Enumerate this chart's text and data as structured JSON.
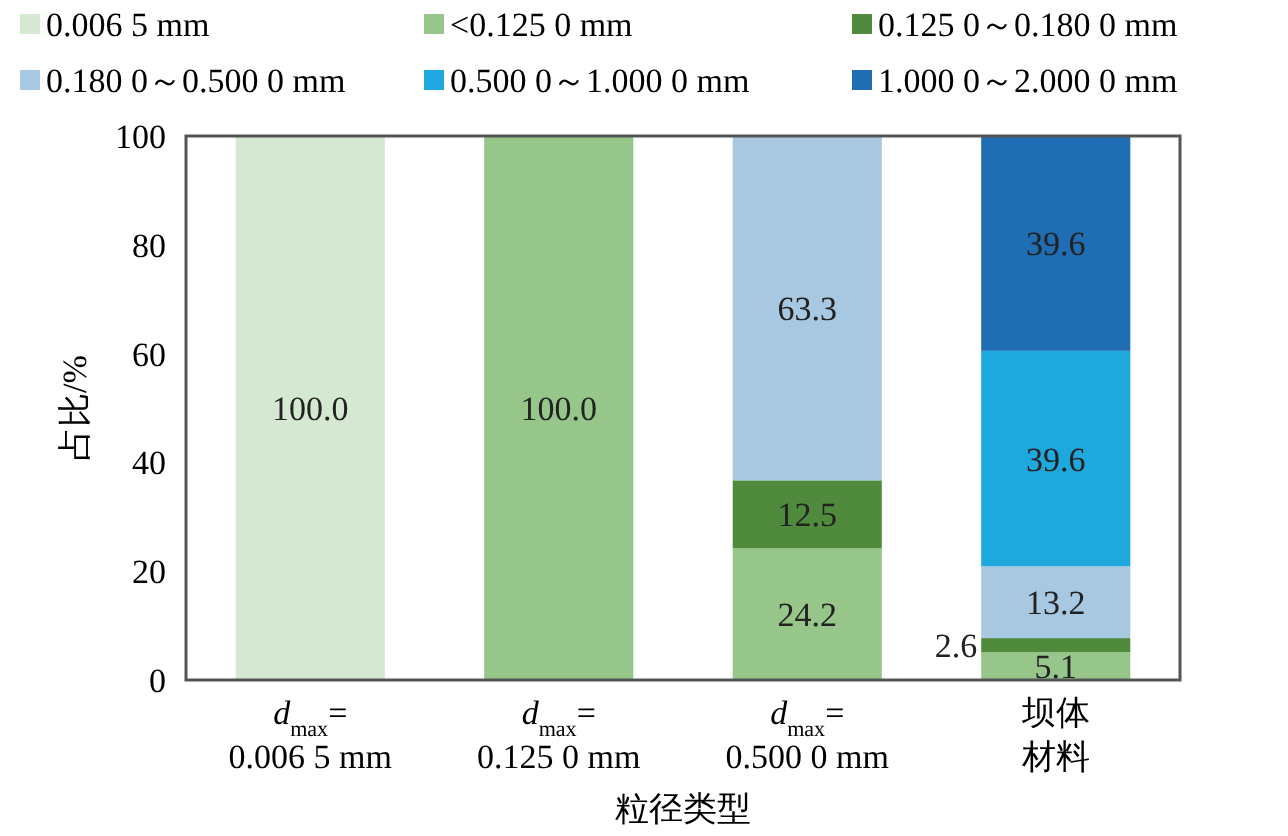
{
  "chart_data": {
    "type": "bar",
    "stacked": true,
    "xlabel": "粒径类型",
    "ylabel": "占比/%",
    "categories": [
      "d$_{max}$=\n0.006 5 mm",
      "d$_{max}$=\n0.125 0 mm",
      "d$_{max}$=\n0.500 0 mm",
      "坝体材料"
    ],
    "ylim": [
      0,
      100
    ],
    "yticks": [
      0,
      20,
      40,
      60,
      80,
      100
    ],
    "grid": false,
    "legend": "top",
    "series": [
      {
        "name": "0.006 5 mm",
        "color": "#d5e8d1",
        "values": [
          100,
          null,
          null,
          null
        ],
        "value_labels": [
          "100.0",
          null,
          null,
          null
        ]
      },
      {
        "name": "<0.125 0 mm",
        "color": "#97c68a",
        "values": [
          null,
          100,
          24.2,
          5.1
        ],
        "value_labels": [
          null,
          "100.0",
          "24.2",
          "5.1"
        ]
      },
      {
        "name": "0.125 0～0.180 0 mm",
        "color": "#4f8a3d",
        "values": [
          null,
          null,
          12.5,
          2.6
        ],
        "value_labels": [
          null,
          null,
          "12.5",
          "2.6"
        ]
      },
      {
        "name": "0.180 0～0.500 0 mm",
        "color": "#a8c8e2",
        "values": [
          null,
          null,
          63.3,
          13.2
        ],
        "value_labels": [
          null,
          null,
          "63.3",
          "13.2"
        ]
      },
      {
        "name": "0.500 0～1.000 0 mm",
        "color": "#1fa8de",
        "values": [
          null,
          null,
          null,
          39.6
        ],
        "value_labels": [
          null,
          null,
          null,
          "39.6"
        ]
      },
      {
        "name": "1.000 0～2.000 0 mm",
        "color": "#1f6db3",
        "values": [
          null,
          null,
          null,
          39.6
        ],
        "value_labels": [
          null,
          null,
          null,
          "39.6"
        ]
      }
    ]
  }
}
